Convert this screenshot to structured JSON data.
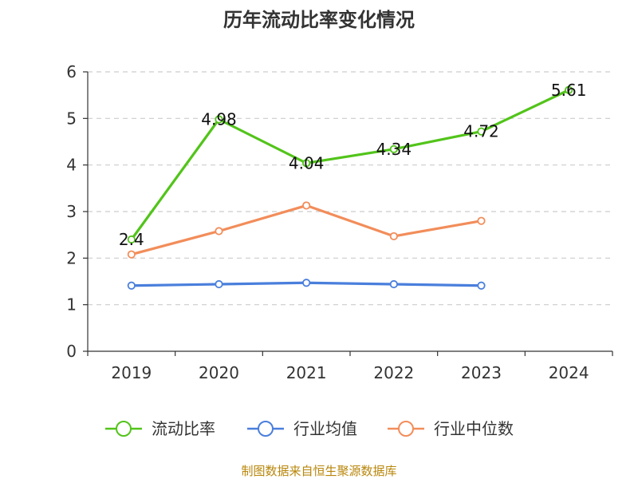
{
  "chart_data": {
    "type": "line",
    "title": "历年流动比率变化情况",
    "categories": [
      "2019",
      "2020",
      "2021",
      "2022",
      "2023",
      "2024"
    ],
    "ylim": [
      0,
      6
    ],
    "yticks": [
      0,
      1,
      2,
      3,
      4,
      5,
      6
    ],
    "grid": true,
    "legend_position": "bottom",
    "series": [
      {
        "name": "流动比率",
        "color": "#52c41a",
        "values": [
          2.4,
          4.98,
          4.04,
          4.34,
          4.72,
          5.61
        ],
        "labels": [
          "2.4",
          "4.98",
          "4.04",
          "4.34",
          "4.72",
          "5.61"
        ],
        "show_labels": true
      },
      {
        "name": "行业均值",
        "color": "#4a7fdc",
        "values": [
          1.41,
          1.44,
          1.47,
          1.44,
          1.41,
          null
        ],
        "show_labels": false
      },
      {
        "name": "行业中位数",
        "color": "#f28d5a",
        "values": [
          2.08,
          2.58,
          3.13,
          2.47,
          2.8,
          null
        ],
        "show_labels": false
      }
    ],
    "source": "制图数据来自恒生聚源数据库"
  }
}
